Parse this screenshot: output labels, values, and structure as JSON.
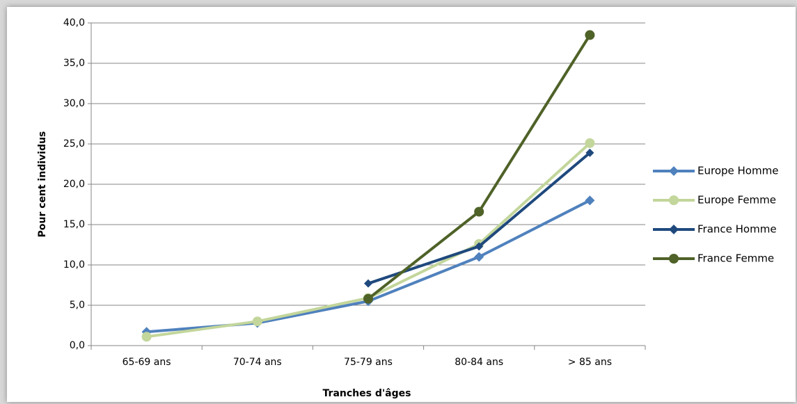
{
  "chart_data": {
    "type": "line",
    "title": "",
    "xlabel": "Tranches d'âges",
    "ylabel": "Pour cent individus",
    "categories": [
      "65-69 ans",
      "70-74 ans",
      "75-79 ans",
      "80-84 ans",
      "> 85 ans"
    ],
    "y_ticks": [
      "0,0",
      "5,0",
      "10,0",
      "15,0",
      "20,0",
      "25,0",
      "30,0",
      "35,0",
      "40,0"
    ],
    "ylim": [
      0,
      40
    ],
    "grid": true,
    "legend": "right",
    "series": [
      {
        "name": "Europe Homme",
        "values": [
          1.7,
          2.8,
          5.5,
          11.0,
          18.0
        ],
        "color": "#4f81bd",
        "marker": "diamond"
      },
      {
        "name": "Europe Femme",
        "values": [
          1.1,
          3.0,
          5.9,
          12.6,
          25.1
        ],
        "color": "#c3d69b",
        "marker": "circle"
      },
      {
        "name": "France Homme",
        "values": [
          null,
          null,
          7.7,
          12.3,
          23.9
        ],
        "color": "#1f497d",
        "marker": "diamond"
      },
      {
        "name": "France Femme",
        "values": [
          null,
          null,
          5.8,
          16.6,
          38.5
        ],
        "color": "#4f6228",
        "marker": "circle"
      }
    ]
  }
}
